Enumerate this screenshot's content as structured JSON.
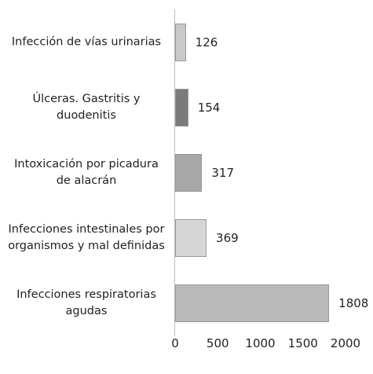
{
  "chart_data": {
    "type": "barh",
    "categories": [
      "Infección de vías urinarias",
      "Úlceras. Gastritis y duodenitis",
      "Intoxicación por picadura de alacrán",
      "Infecciones intestinales por organismos y mal definidas",
      "Infecciones respiratorias agudas"
    ],
    "values": [
      126,
      154,
      317,
      369,
      1808
    ],
    "colors": [
      "#c9c9c9",
      "#7a7a7a",
      "#a8a8a8",
      "#d6d6d6",
      "#b9b9b9"
    ],
    "xlim": [
      0,
      2000
    ],
    "xticks": [
      0,
      500,
      1000,
      1500,
      2000
    ]
  }
}
